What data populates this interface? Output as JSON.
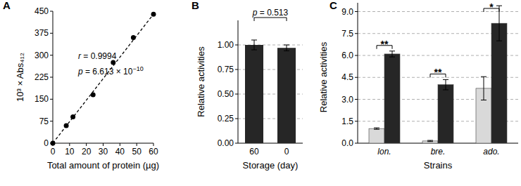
{
  "chart_data": [
    {
      "type": "scatter",
      "title": "A",
      "x_label": "Total amount of protein (µg)",
      "y_label": "10³ × Abs₄₁₂",
      "xlim": [
        0,
        60
      ],
      "xticks": [
        0,
        10,
        20,
        30,
        40,
        50,
        60
      ],
      "ylim": [
        0,
        450
      ],
      "yticks": [
        0,
        75,
        150,
        225,
        300,
        375,
        450
      ],
      "series": [
        {
          "type": "scatter",
          "marker": "circle",
          "color": "#000000",
          "x": [
            0,
            8,
            12,
            24,
            36,
            48,
            60
          ],
          "values": [
            0,
            60,
            90,
            165,
            275,
            360,
            440
          ]
        },
        {
          "type": "line",
          "line_style": "dashed",
          "color": "#000000",
          "x": [
            0,
            60
          ],
          "values": [
            0,
            440
          ]
        }
      ],
      "annotations": [
        {
          "text": "r = 0.9994"
        },
        {
          "text": "p = 6.613 × 10",
          "superscript": "−10"
        }
      ]
    },
    {
      "type": "bar",
      "title": "B",
      "x_label": "Storage (day)",
      "y_label": "Relative activities",
      "categories": [
        "60",
        "0"
      ],
      "values": [
        1.0,
        0.97
      ],
      "errors": [
        0.05,
        0.03
      ],
      "color": "#262626",
      "ylim": [
        0,
        1.25
      ],
      "yticks": [
        {
          "value": 0,
          "label": "0.00"
        },
        0.25,
        {
          "value": 0.5,
          "label": "0.50"
        },
        0.75,
        {
          "value": 1,
          "label": "1.00"
        }
      ],
      "grid": true,
      "significance": [
        "p = 0.513"
      ]
    },
    {
      "type": "bar",
      "title": "C",
      "x_label": "Strains",
      "y_label": "Relative activities",
      "categories": [
        "lon.",
        "bre.",
        "ado."
      ],
      "series": [
        {
          "color": "#d9d9d9",
          "values": [
            1.0,
            0.15,
            3.75
          ],
          "errors": [
            0.05,
            0.04,
            0.8
          ]
        },
        {
          "color": "#262626",
          "values": [
            6.1,
            4.0,
            8.2
          ],
          "errors": [
            0.2,
            0.35,
            1.2
          ]
        }
      ],
      "ylim": [
        0,
        9.6
      ],
      "yticks": [
        {
          "value": 0,
          "label": "0.0"
        },
        1.5,
        {
          "value": 3,
          "label": "3.0"
        },
        4.5,
        {
          "value": 6,
          "label": "6.0"
        },
        7.5,
        {
          "value": 9,
          "label": "9.0"
        }
      ],
      "grid": true,
      "significance": [
        "**",
        "**",
        "*"
      ]
    }
  ]
}
